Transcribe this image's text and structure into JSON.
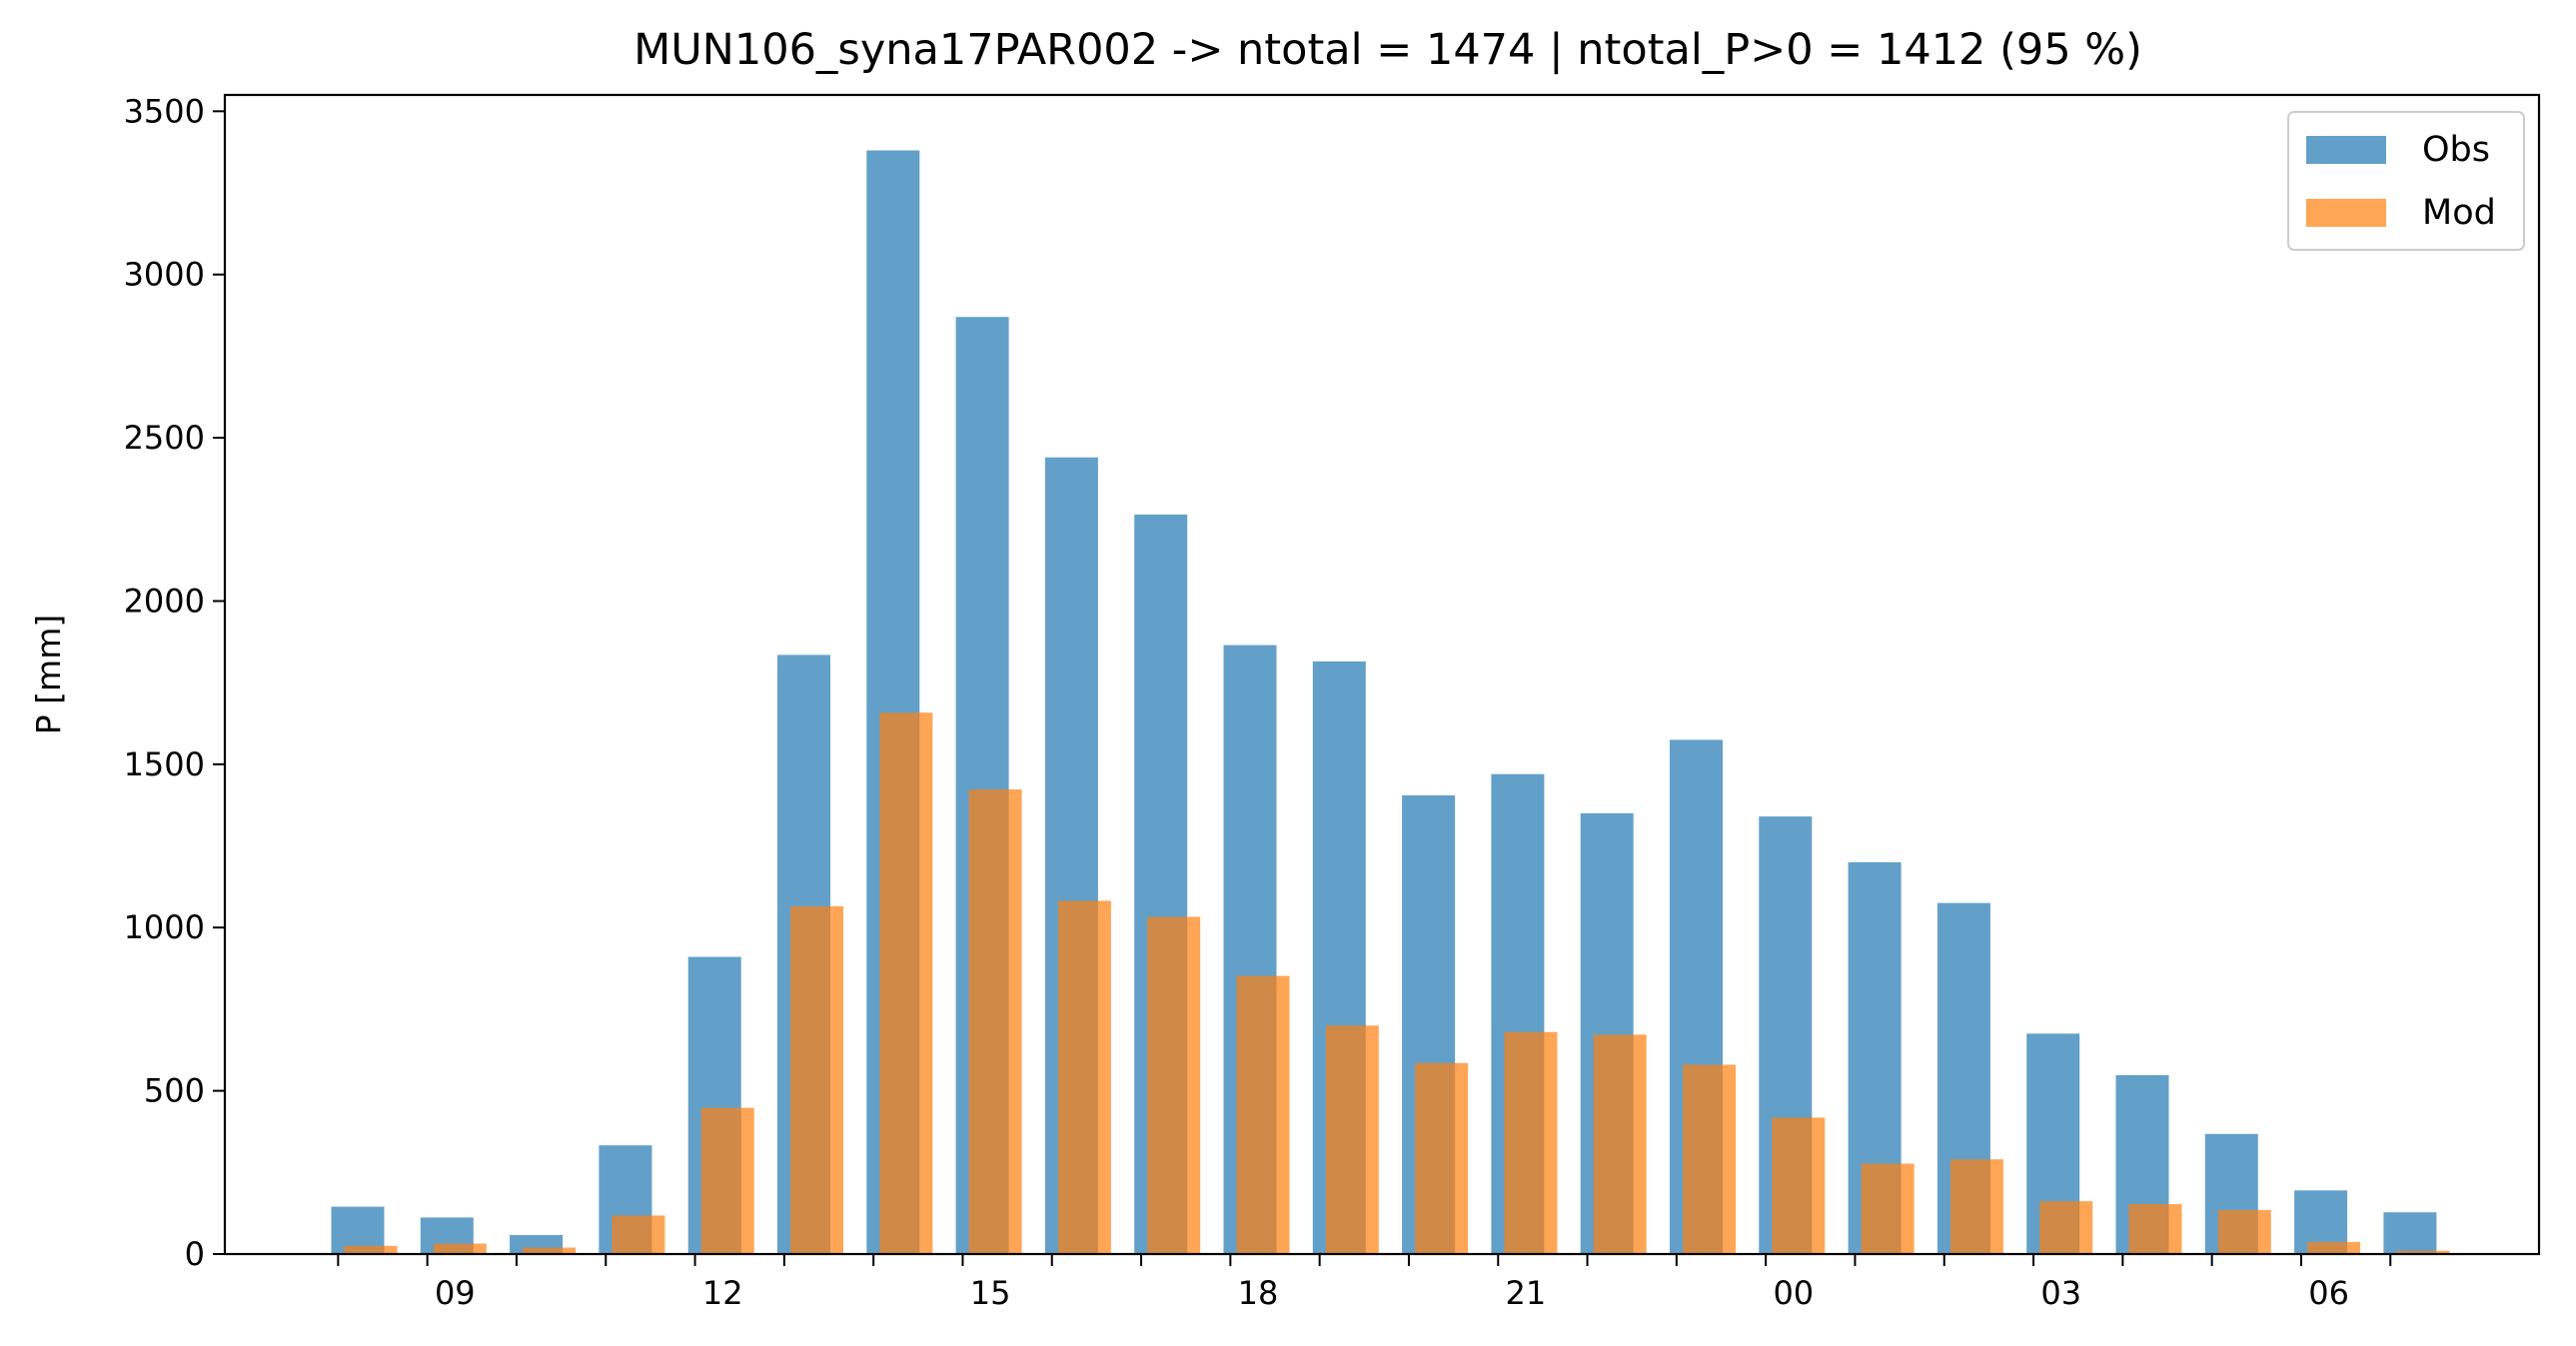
{
  "chart_data": {
    "type": "bar",
    "title": "MUN106_syna17PAR002 -> ntotal = 1474 | ntotal_P>0 = 1412 (95 %)",
    "xlabel": "",
    "ylabel": "P [mm]",
    "ylim": [
      0,
      3550
    ],
    "yticks": [
      0,
      500,
      1000,
      1500,
      2000,
      2500,
      3000,
      3500
    ],
    "xtick_labels": [
      "09",
      "12",
      "15",
      "18",
      "21",
      "00",
      "03",
      "06"
    ],
    "xtick_label_hours": [
      9,
      12,
      15,
      18,
      21,
      24,
      27,
      30
    ],
    "legend_position": "top-right",
    "grid": false,
    "categories": [
      "08",
      "09",
      "10",
      "11",
      "12",
      "13",
      "14",
      "15",
      "16",
      "17",
      "18",
      "19",
      "20",
      "21",
      "22",
      "23",
      "00",
      "01",
      "02",
      "03",
      "04",
      "05",
      "06",
      "07"
    ],
    "series": [
      {
        "name": "Obs",
        "color": "#1f77b4",
        "opacity": 0.7,
        "values": [
          145,
          112,
          58,
          333,
          910,
          1835,
          3380,
          2870,
          2440,
          2265,
          1865,
          1815,
          1405,
          1470,
          1350,
          1575,
          1340,
          1200,
          1075,
          675,
          548,
          368,
          195,
          128
        ]
      },
      {
        "name": "Mod",
        "color": "#ff7f0e",
        "opacity": 0.7,
        "values": [
          25,
          32,
          20,
          118,
          448,
          1065,
          1658,
          1423,
          1082,
          1033,
          852,
          700,
          585,
          680,
          672,
          580,
          418,
          277,
          290,
          162,
          153,
          135,
          37,
          10
        ]
      }
    ]
  }
}
